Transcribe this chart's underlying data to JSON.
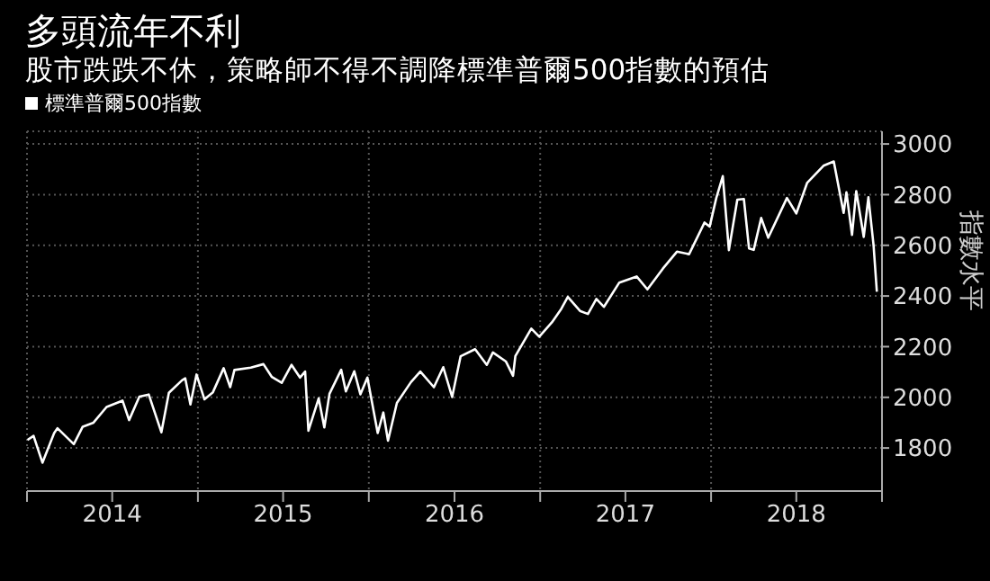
{
  "chart_data": {
    "type": "line",
    "title": "多頭流年不利",
    "subtitle": "股市跌跌不休，策略師不得不調降標準普爾500指數的預估",
    "ylabel": "指數水平",
    "x": [
      "2014-01-02",
      "2014-01-15",
      "2014-02-03",
      "2014-02-28",
      "2014-03-07",
      "2014-04-11",
      "2014-04-30",
      "2014-05-23",
      "2014-06-20",
      "2014-07-24",
      "2014-08-07",
      "2014-08-29",
      "2014-09-18",
      "2014-10-15",
      "2014-10-31",
      "2014-11-28",
      "2014-12-05",
      "2014-12-16",
      "2014-12-29",
      "2015-01-15",
      "2015-02-02",
      "2015-02-25",
      "2015-03-11",
      "2015-03-20",
      "2015-04-24",
      "2015-05-21",
      "2015-06-08",
      "2015-06-29",
      "2015-07-20",
      "2015-08-07",
      "2015-08-18",
      "2015-08-25",
      "2015-09-16",
      "2015-09-28",
      "2015-10-09",
      "2015-11-03",
      "2015-11-13",
      "2015-12-01",
      "2015-12-14",
      "2015-12-29",
      "2016-01-20",
      "2016-02-01",
      "2016-02-11",
      "2016-03-01",
      "2016-03-31",
      "2016-04-20",
      "2016-05-19",
      "2016-06-08",
      "2016-06-27",
      "2016-07-15",
      "2016-08-15",
      "2016-09-09",
      "2016-09-22",
      "2016-10-20",
      "2016-11-04",
      "2016-11-09",
      "2016-12-13",
      "2016-12-30",
      "2017-01-26",
      "2017-02-15",
      "2017-03-01",
      "2017-03-27",
      "2017-04-13",
      "2017-05-01",
      "2017-05-17",
      "2017-06-19",
      "2017-07-26",
      "2017-08-18",
      "2017-09-20",
      "2017-10-20",
      "2017-11-15",
      "2017-12-18",
      "2017-12-29",
      "2018-01-12",
      "2018-01-26",
      "2018-02-08",
      "2018-02-26",
      "2018-03-12",
      "2018-03-23",
      "2018-04-02",
      "2018-04-18",
      "2018-05-03",
      "2018-06-12",
      "2018-07-02",
      "2018-07-25",
      "2018-08-29",
      "2018-09-20",
      "2018-10-11",
      "2018-10-17",
      "2018-10-29",
      "2018-11-07",
      "2018-11-23",
      "2018-12-03",
      "2018-12-14",
      "2018-12-21"
    ],
    "series": [
      {
        "name": "標準普爾500指數",
        "color": "#ffffff",
        "values": [
          1832,
          1848,
          1742,
          1859,
          1878,
          1815,
          1884,
          1900,
          1962,
          1987,
          1910,
          2003,
          2011,
          1862,
          2018,
          2067,
          2075,
          1972,
          2090,
          1992,
          2020,
          2115,
          2040,
          2108,
          2117,
          2131,
          2080,
          2057,
          2128,
          2078,
          2102,
          1868,
          1996,
          1881,
          2014,
          2109,
          2023,
          2103,
          2012,
          2078,
          1859,
          1940,
          1829,
          1978,
          2060,
          2102,
          2040,
          2119,
          2001,
          2162,
          2190,
          2128,
          2177,
          2141,
          2085,
          2163,
          2271,
          2239,
          2296,
          2349,
          2396,
          2341,
          2329,
          2388,
          2357,
          2453,
          2477,
          2426,
          2508,
          2575,
          2565,
          2690,
          2674,
          2786,
          2873,
          2581,
          2780,
          2783,
          2588,
          2582,
          2708,
          2630,
          2787,
          2726,
          2846,
          2914,
          2931,
          2728,
          2809,
          2641,
          2814,
          2633,
          2790,
          2600,
          2417
        ]
      }
    ],
    "xlim": [
      "2014-01-01",
      "2019-01-01"
    ],
    "xticks": [
      {
        "value": "2014-01-01",
        "label": null
      },
      {
        "value": "2014-07-02",
        "label": "2014"
      },
      {
        "value": "2015-01-01",
        "label": null
      },
      {
        "value": "2015-07-02",
        "label": "2015"
      },
      {
        "value": "2016-01-01",
        "label": null
      },
      {
        "value": "2016-07-02",
        "label": "2016"
      },
      {
        "value": "2017-01-01",
        "label": null
      },
      {
        "value": "2017-07-02",
        "label": "2017"
      },
      {
        "value": "2018-01-01",
        "label": null
      },
      {
        "value": "2018-07-02",
        "label": "2018"
      },
      {
        "value": "2019-01-01",
        "label": null
      }
    ],
    "ylim": [
      1630,
      3050
    ],
    "yticks": [
      1800,
      2000,
      2200,
      2400,
      2600,
      2800,
      3000
    ],
    "grid": true,
    "legend": "top left",
    "marker": "none",
    "line_style": "solid"
  }
}
